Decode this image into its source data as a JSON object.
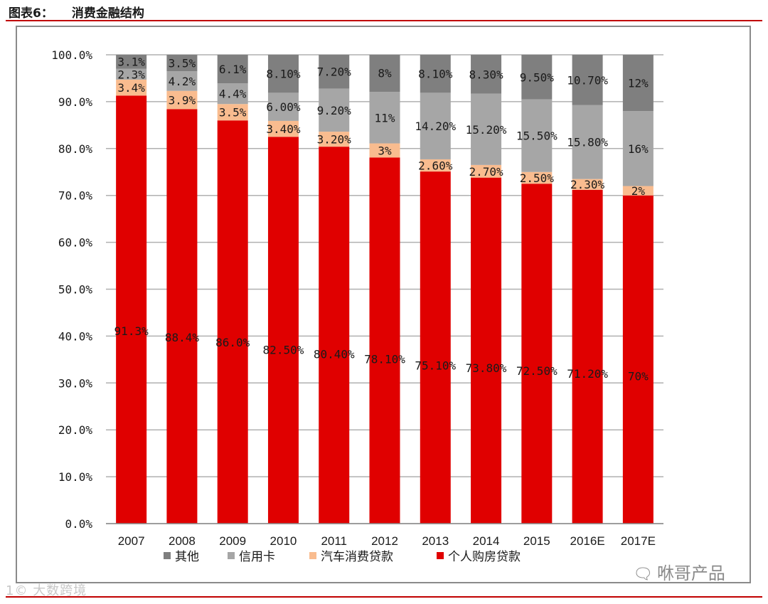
{
  "header": {
    "figure_label": "图表6：",
    "title": "消费金融结构"
  },
  "watermarks": {
    "left": "大数跨境",
    "left_mark": "1©",
    "right": "咻哥产品",
    "right_icon": "wechat-icon"
  },
  "colors": {
    "housing": "#e00000",
    "auto": "#f9bc8f",
    "credit": "#a6a6a6",
    "other": "#7f7f7f",
    "grid": "#b0b0b0",
    "rule": "#c00000"
  },
  "chart_data": {
    "type": "bar",
    "stacked": true,
    "title": "消费金融结构",
    "categories": [
      "2007",
      "2008",
      "2009",
      "2010",
      "2011",
      "2012",
      "2013",
      "2014",
      "2015",
      "2016E",
      "2017E"
    ],
    "ylim": [
      0,
      100
    ],
    "yticks": [
      "0.0%",
      "10.0%",
      "20.0%",
      "30.0%",
      "40.0%",
      "50.0%",
      "60.0%",
      "70.0%",
      "80.0%",
      "90.0%",
      "100.0%"
    ],
    "grid": true,
    "legend_position": "bottom",
    "series": [
      {
        "name": "个人购房贷款",
        "color": "#e00000",
        "values": [
          91.3,
          88.4,
          86.0,
          82.5,
          80.4,
          78.1,
          75.1,
          73.8,
          72.5,
          71.2,
          70
        ],
        "labels": [
          "91.3%",
          "88.4%",
          "86.0%",
          "82.50%",
          "80.40%",
          "78.10%",
          "75.10%",
          "73.80%",
          "72.50%",
          "71.20%",
          "70%"
        ]
      },
      {
        "name": "汽车消费贷款",
        "color": "#f9bc8f",
        "values": [
          3.4,
          3.9,
          3.5,
          3.4,
          3.2,
          3,
          2.6,
          2.7,
          2.5,
          2.3,
          2
        ],
        "labels": [
          "3.4%",
          "3.9%",
          "3.5%",
          "3.40%",
          "3.20%",
          "3%",
          "2.60%",
          "2.70%",
          "2.50%",
          "2.30%",
          "2%"
        ]
      },
      {
        "name": "信用卡",
        "color": "#a6a6a6",
        "values": [
          2.3,
          4.2,
          4.4,
          6.0,
          9.2,
          11,
          14.2,
          15.2,
          15.5,
          15.8,
          16
        ],
        "labels": [
          "2.3%",
          "4.2%",
          "4.4%",
          "6.00%",
          "9.20%",
          "11%",
          "14.20%",
          "15.20%",
          "15.50%",
          "15.80%",
          "16%"
        ]
      },
      {
        "name": "其他",
        "color": "#7f7f7f",
        "values": [
          3.1,
          3.5,
          6.1,
          8.1,
          7.2,
          8,
          8.1,
          8.3,
          9.5,
          10.7,
          12
        ],
        "labels": [
          "3.1%",
          "3.5%",
          "6.1%",
          "8.10%",
          "7.20%",
          "8%",
          "8.10%",
          "8.30%",
          "9.50%",
          "10.70%",
          "12%"
        ]
      }
    ],
    "legend_order": [
      "其他",
      "信用卡",
      "汽车消费贷款",
      "个人购房贷款"
    ]
  }
}
